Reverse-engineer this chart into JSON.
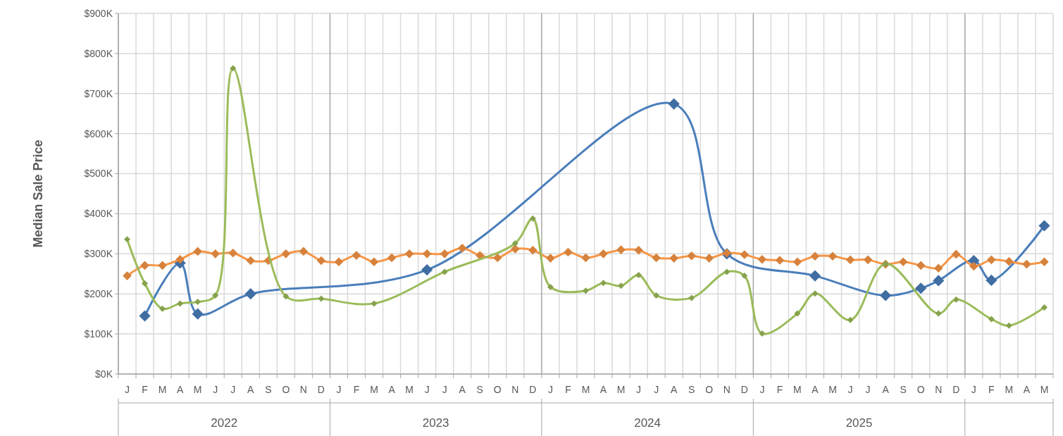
{
  "chart_data": {
    "type": "line",
    "ylabel": "Median Sale Price",
    "categories": [
      "J",
      "F",
      "M",
      "A",
      "M",
      "J",
      "J",
      "A",
      "S",
      "O",
      "N",
      "D",
      "J",
      "F",
      "M",
      "A",
      "M",
      "J",
      "J",
      "A",
      "S",
      "O",
      "N",
      "D",
      "J",
      "F",
      "M",
      "A",
      "M",
      "J",
      "J",
      "A",
      "S",
      "O",
      "N",
      "D",
      "J",
      "F",
      "M",
      "A",
      "M",
      "J",
      "J",
      "A",
      "S",
      "O",
      "N",
      "D",
      "J",
      "F",
      "M",
      "A",
      "M"
    ],
    "annotations": [
      "2022",
      "2023",
      "2024",
      "2025"
    ],
    "ylim": [
      0,
      900
    ],
    "yticks": [
      {
        "value": 0,
        "label": "$0K"
      },
      {
        "value": 100,
        "label": "$100K"
      },
      {
        "value": 200,
        "label": "$200K"
      },
      {
        "value": 300,
        "label": "$300K"
      },
      {
        "value": 400,
        "label": "$400K"
      },
      {
        "value": 500,
        "label": "$500K"
      },
      {
        "value": 600,
        "label": "$600K"
      },
      {
        "value": 700,
        "label": "$700K"
      },
      {
        "value": 800,
        "label": "$800K"
      },
      {
        "value": 900,
        "label": "$900K"
      }
    ],
    "grid": true,
    "marker": "diamond",
    "line_style": "solid",
    "series": [
      {
        "color": "#4a7ebb",
        "values": [
          null,
          145,
          null,
          277,
          150,
          null,
          null,
          200,
          null,
          null,
          null,
          null,
          null,
          null,
          null,
          null,
          null,
          260,
          null,
          null,
          null,
          null,
          null,
          null,
          null,
          null,
          null,
          null,
          null,
          null,
          null,
          674,
          null,
          null,
          300,
          null,
          null,
          null,
          null,
          245,
          null,
          null,
          null,
          196,
          null,
          214,
          233,
          null,
          283,
          234,
          null,
          null,
          370
        ]
      },
      {
        "color": "#f79646",
        "values": [
          245,
          271,
          271,
          286,
          306,
          300,
          302,
          283,
          283,
          300,
          306,
          283,
          280,
          296,
          280,
          290,
          300,
          300,
          300,
          314,
          296,
          290,
          312,
          309,
          289,
          304,
          290,
          300,
          310,
          309,
          290,
          289,
          295,
          289,
          302,
          298,
          286,
          284,
          280,
          294,
          294,
          285,
          285,
          274,
          280,
          271,
          264,
          299,
          269,
          285,
          281,
          274,
          280
        ]
      },
      {
        "color": "#9bbb59",
        "values": [
          336,
          226,
          163,
          176,
          180,
          196,
          763,
          null,
          null,
          194,
          null,
          188,
          null,
          null,
          176,
          null,
          null,
          null,
          255,
          null,
          null,
          null,
          326,
          388,
          217,
          null,
          208,
          227,
          220,
          247,
          196,
          null,
          190,
          null,
          255,
          245,
          101,
          null,
          151,
          201,
          null,
          135,
          null,
          275,
          null,
          null,
          151,
          186,
          null,
          137,
          121,
          null,
          166
        ]
      }
    ]
  }
}
